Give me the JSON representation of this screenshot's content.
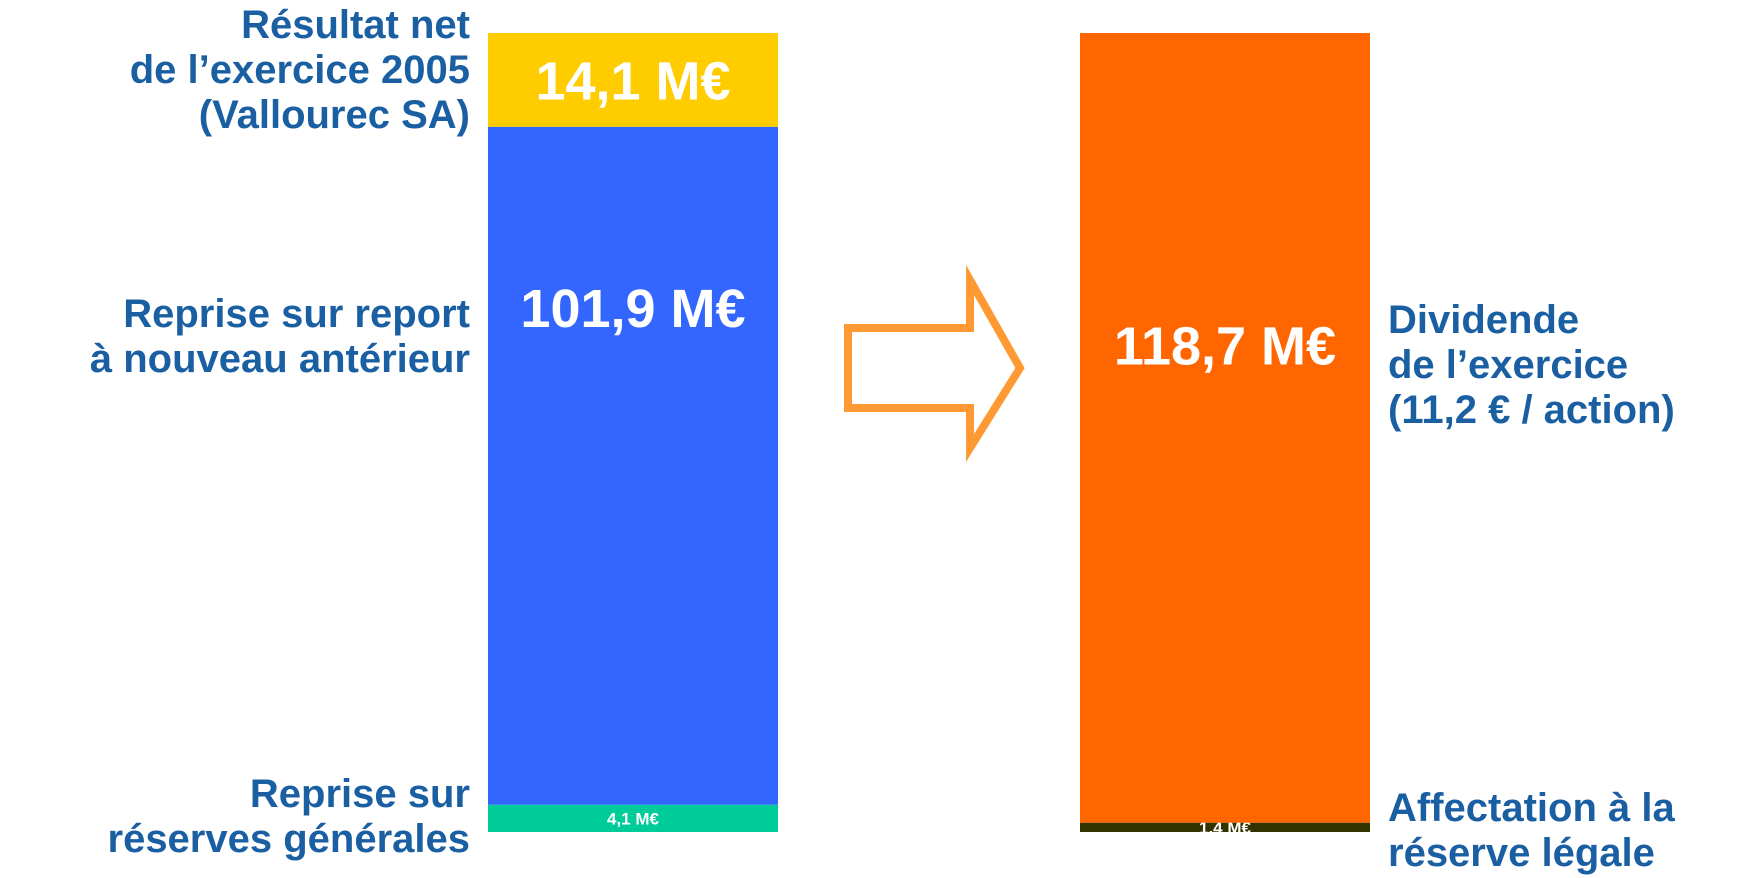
{
  "chart_data": {
    "type": "bar",
    "stacked": true,
    "unit": "M€",
    "categories": [
      "",
      ""
    ],
    "series": [
      {
        "column": 0,
        "label": "Reprise sur\nréserves générales",
        "value": 4.1,
        "value_label": "4,1 M€",
        "color": "#00cc99"
      },
      {
        "column": 0,
        "label": "Reprise sur report\nà nouveau antérieur",
        "value": 101.9,
        "value_label": "101,9 M€",
        "color": "#3366ff"
      },
      {
        "column": 0,
        "label": "Résultat net\nde l’exercice 2005\n(Vallourec SA)",
        "value": 14.1,
        "value_label": "14,1 M€",
        "color": "#ffcc00"
      },
      {
        "column": 1,
        "label": "Affectation à la\nréserve légale",
        "value": 1.4,
        "value_label": "1,4 M€",
        "color": "#333300"
      },
      {
        "column": 1,
        "label": "Dividende\nde l’exercice\n(11,2 € / action)",
        "value": 118.7,
        "value_label": "118,7 M€",
        "color": "#ff6600"
      }
    ],
    "total": 120.1,
    "arrow_color": "#ff9933"
  }
}
